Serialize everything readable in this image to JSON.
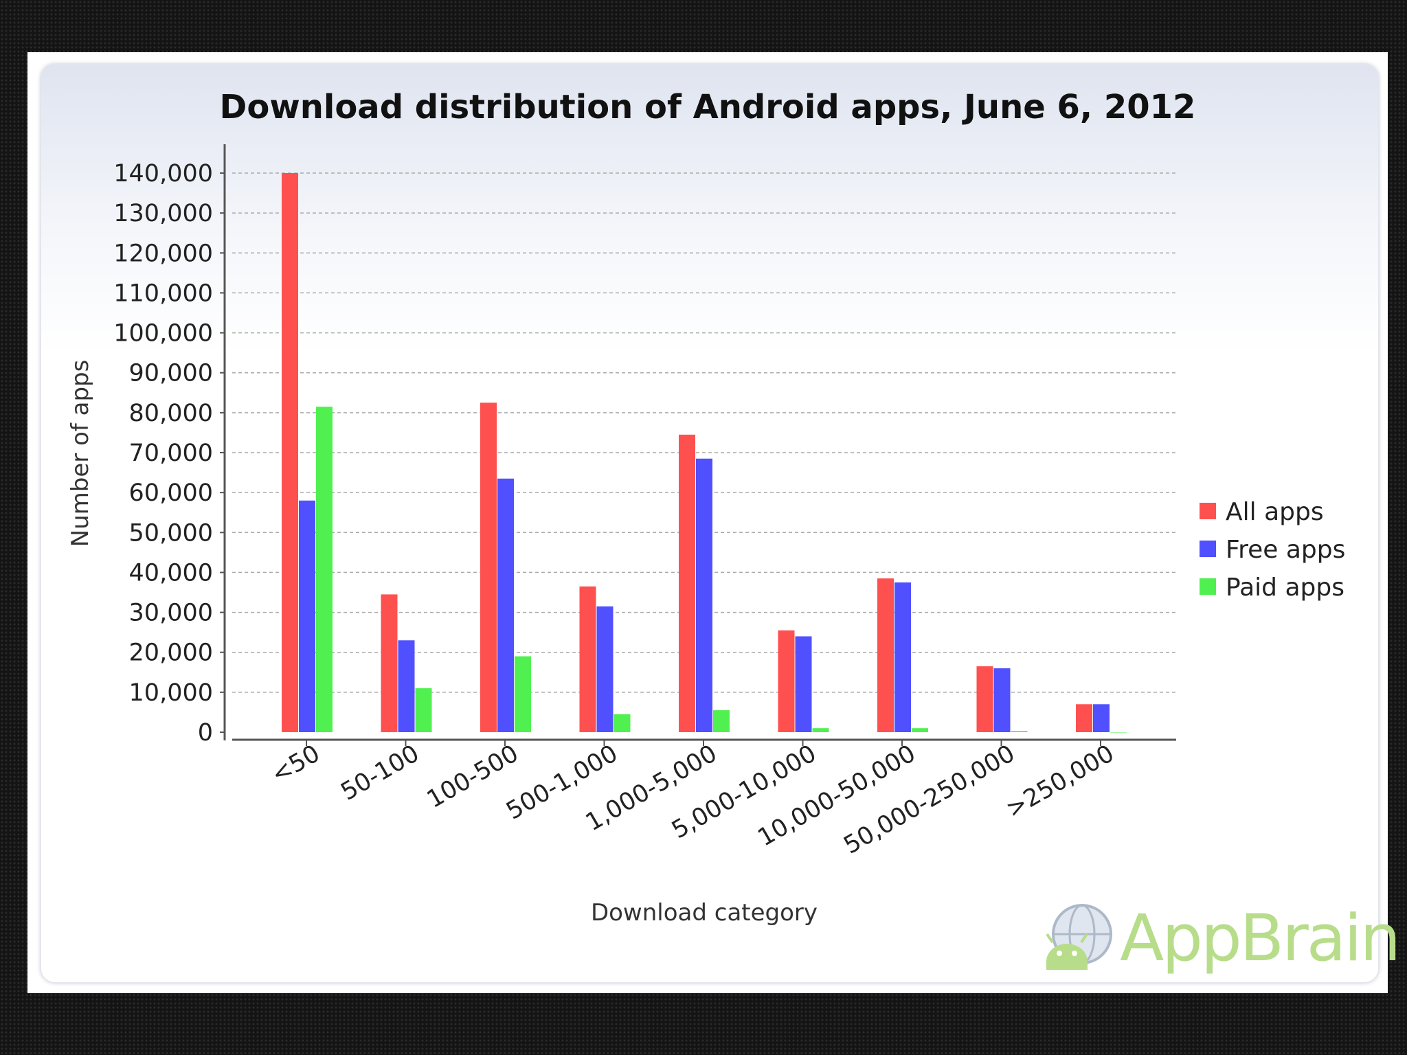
{
  "chart_data": {
    "type": "bar",
    "title": "Download distribution of Android apps, June 6, 2012",
    "xlabel": "Download category",
    "ylabel": "Number of apps",
    "ylim": [
      0,
      140000
    ],
    "yticks": [
      0,
      10000,
      20000,
      30000,
      40000,
      50000,
      60000,
      70000,
      80000,
      90000,
      100000,
      110000,
      120000,
      130000,
      140000
    ],
    "ytick_labels": [
      "0",
      "10,000",
      "20,000",
      "30,000",
      "40,000",
      "50,000",
      "60,000",
      "70,000",
      "80,000",
      "90,000",
      "100,000",
      "110,000",
      "120,000",
      "130,000",
      "140,000"
    ],
    "grid": true,
    "legend_position": "right",
    "categories": [
      "<50",
      "50-100",
      "100-500",
      "500-1,000",
      "1,000-5,000",
      "5,000-10,000",
      "10,000-50,000",
      "50,000-250,000",
      ">250,000"
    ],
    "series": [
      {
        "name": "All apps",
        "color": "#ff5050",
        "values": [
          140000,
          34500,
          82500,
          36500,
          74500,
          25500,
          38500,
          16500,
          7000
        ]
      },
      {
        "name": "Free apps",
        "color": "#5050ff",
        "values": [
          58000,
          23000,
          63500,
          31500,
          68500,
          24000,
          37500,
          16000,
          7000
        ]
      },
      {
        "name": "Paid apps",
        "color": "#50f050",
        "values": [
          81500,
          11000,
          19000,
          4500,
          5500,
          1000,
          1000,
          300,
          0
        ]
      }
    ]
  },
  "branding": {
    "text": "AppBrain",
    "logo_icon": "android-globe-icon"
  }
}
